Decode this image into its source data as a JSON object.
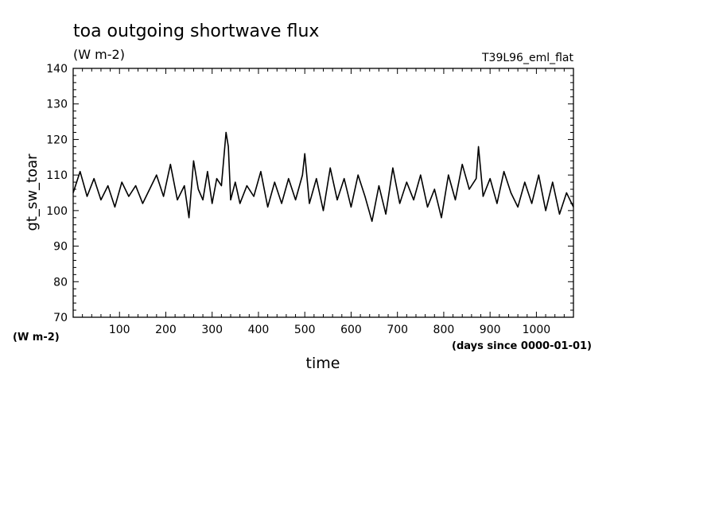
{
  "chart_data": {
    "type": "line",
    "title": "toa outgoing shortwave flux",
    "subtitle": "(W m-2)",
    "case_label": "T39L96_eml_flat",
    "xlabel": "time",
    "x_units": "(days since 0000-01-01)",
    "ylabel": "gt_sw_toar",
    "y_units": "(W m-2)",
    "xlim": [
      0,
      1080
    ],
    "ylim": [
      70,
      140
    ],
    "x_ticks": [
      100,
      200,
      300,
      400,
      500,
      600,
      700,
      800,
      900,
      1000
    ],
    "y_ticks": [
      70,
      80,
      90,
      100,
      110,
      120,
      130,
      140
    ],
    "grid": false,
    "line_color": "#000000",
    "x": [
      0,
      15,
      30,
      45,
      60,
      75,
      90,
      105,
      120,
      135,
      150,
      165,
      180,
      195,
      210,
      225,
      240,
      250,
      260,
      270,
      280,
      290,
      300,
      310,
      320,
      330,
      335,
      340,
      350,
      360,
      375,
      390,
      405,
      420,
      435,
      450,
      465,
      480,
      495,
      500,
      510,
      525,
      540,
      555,
      570,
      585,
      600,
      615,
      630,
      645,
      660,
      675,
      690,
      705,
      720,
      735,
      750,
      765,
      780,
      795,
      810,
      825,
      840,
      855,
      870,
      875,
      885,
      900,
      915,
      930,
      945,
      960,
      975,
      990,
      1005,
      1020,
      1035,
      1050,
      1065,
      1080
    ],
    "y": [
      105,
      111,
      104,
      109,
      103,
      107,
      101,
      108,
      104,
      107,
      102,
      106,
      110,
      104,
      113,
      103,
      107,
      98,
      114,
      106,
      103,
      111,
      102,
      109,
      107,
      122,
      118,
      103,
      108,
      102,
      107,
      104,
      111,
      101,
      108,
      102,
      109,
      103,
      110,
      116,
      102,
      109,
      100,
      112,
      103,
      109,
      101,
      110,
      104,
      97,
      107,
      99,
      112,
      102,
      108,
      103,
      110,
      101,
      106,
      98,
      110,
      103,
      113,
      106,
      109,
      118,
      104,
      109,
      102,
      111,
      105,
      101,
      108,
      102,
      110,
      100,
      108,
      99,
      105,
      101
    ]
  }
}
